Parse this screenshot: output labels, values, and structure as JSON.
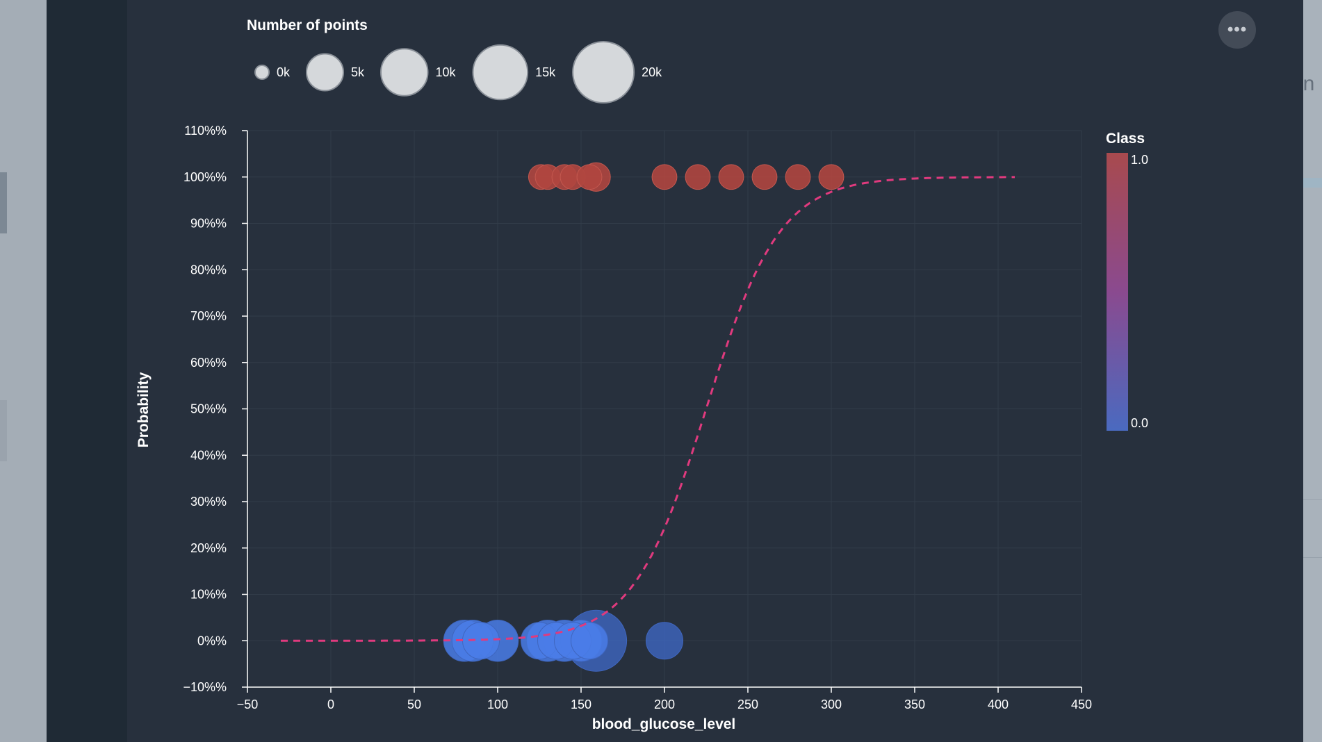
{
  "menu": {
    "icon": "more-dots-icon",
    "label": "•••"
  },
  "background": {
    "partial_text": "on"
  },
  "chart_data": {
    "type": "scatter",
    "xlabel": "blood_glucose_level",
    "ylabel": "Probability",
    "xlim": [
      -50,
      450
    ],
    "ylim": [
      -10,
      110
    ],
    "x_ticks": [
      "−50",
      "0",
      "50",
      "100",
      "150",
      "200",
      "250",
      "300",
      "350",
      "400",
      "450"
    ],
    "x_tick_values": [
      -50,
      0,
      50,
      100,
      150,
      200,
      250,
      300,
      350,
      400,
      450
    ],
    "y_ticks": [
      "−10%%",
      "0%%",
      "10%%",
      "20%%",
      "30%%",
      "40%%",
      "50%%",
      "60%%",
      "70%%",
      "80%%",
      "90%%",
      "100%%",
      "110%%"
    ],
    "y_tick_values": [
      -10,
      0,
      10,
      20,
      30,
      40,
      50,
      60,
      70,
      80,
      90,
      100,
      110
    ],
    "grid": true,
    "size_legend": {
      "title": "Number of points",
      "entries": [
        {
          "label": "0k",
          "value": 0
        },
        {
          "label": "5k",
          "value": 5000
        },
        {
          "label": "10k",
          "value": 10000
        },
        {
          "label": "15k",
          "value": 15000
        },
        {
          "label": "20k",
          "value": 20000
        }
      ]
    },
    "color_legend": {
      "title": "Class",
      "max_label": "1.0",
      "min_label": "0.0",
      "max_color": "#a84a4e",
      "mid_color": "#8a4a8f",
      "min_color": "#4a6ac0"
    },
    "points": [
      {
        "x": 126,
        "y": 100,
        "count": 1300,
        "class": 1
      },
      {
        "x": 130,
        "y": 100,
        "count": 1300,
        "class": 1
      },
      {
        "x": 140,
        "y": 100,
        "count": 1300,
        "class": 1
      },
      {
        "x": 145,
        "y": 100,
        "count": 1300,
        "class": 1
      },
      {
        "x": 155,
        "y": 100,
        "count": 1300,
        "class": 1
      },
      {
        "x": 159,
        "y": 100,
        "count": 2200,
        "class": 1
      },
      {
        "x": 200,
        "y": 100,
        "count": 1300,
        "class": 1
      },
      {
        "x": 220,
        "y": 100,
        "count": 1300,
        "class": 1
      },
      {
        "x": 240,
        "y": 100,
        "count": 1300,
        "class": 1
      },
      {
        "x": 260,
        "y": 100,
        "count": 1300,
        "class": 1
      },
      {
        "x": 280,
        "y": 100,
        "count": 1300,
        "class": 1
      },
      {
        "x": 300,
        "y": 100,
        "count": 1300,
        "class": 1
      },
      {
        "x": 159,
        "y": 0,
        "count": 20000,
        "class": 0
      },
      {
        "x": 200,
        "y": 0,
        "count": 5000,
        "class": 0
      },
      {
        "x": 100,
        "y": 0,
        "count": 7000,
        "class": 0
      },
      {
        "x": 80,
        "y": 0,
        "count": 7000,
        "class": 0
      },
      {
        "x": 130,
        "y": 0,
        "count": 7000,
        "class": 0
      },
      {
        "x": 140,
        "y": 0,
        "count": 7000,
        "class": 0
      },
      {
        "x": 150,
        "y": 0,
        "count": 7000,
        "class": 0
      },
      {
        "x": 85,
        "y": 0,
        "count": 7000,
        "class": 0
      },
      {
        "x": 90,
        "y": 0,
        "count": 5000,
        "class": 0
      },
      {
        "x": 125,
        "y": 0,
        "count": 5000,
        "class": 0
      },
      {
        "x": 135,
        "y": 0,
        "count": 5000,
        "class": 0
      },
      {
        "x": 145,
        "y": 0,
        "count": 5000,
        "class": 0
      },
      {
        "x": 155,
        "y": 0,
        "count": 5000,
        "class": 0
      }
    ],
    "logistic_curve": {
      "midpoint": 225,
      "scale": 22,
      "x_range": [
        -30,
        410
      ],
      "color": "#e03a7e",
      "style": "dashed"
    }
  }
}
